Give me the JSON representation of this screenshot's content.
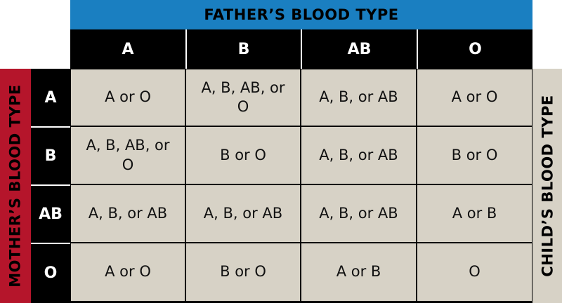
{
  "header": {
    "top_title": "FATHER’S BLOOD TYPE",
    "left_title": "MOTHER’S BLOOD TYPE",
    "right_title": "CHILD’S BLOOD TYPE"
  },
  "table": {
    "columns": [
      "A",
      "B",
      "AB",
      "O"
    ],
    "rows": [
      {
        "label": "A",
        "cells": [
          "A or O",
          "A, B, AB, or O",
          "A, B, or AB",
          "A or O"
        ]
      },
      {
        "label": "B",
        "cells": [
          "A, B, AB, or O",
          "B or O",
          "A, B, or AB",
          "B or O"
        ]
      },
      {
        "label": "AB",
        "cells": [
          "A, B, or AB",
          "A, B, or AB",
          "A, B, or AB",
          "A or B"
        ]
      },
      {
        "label": "O",
        "cells": [
          "A or O",
          "B or O",
          "A or B",
          "O"
        ]
      }
    ]
  }
}
